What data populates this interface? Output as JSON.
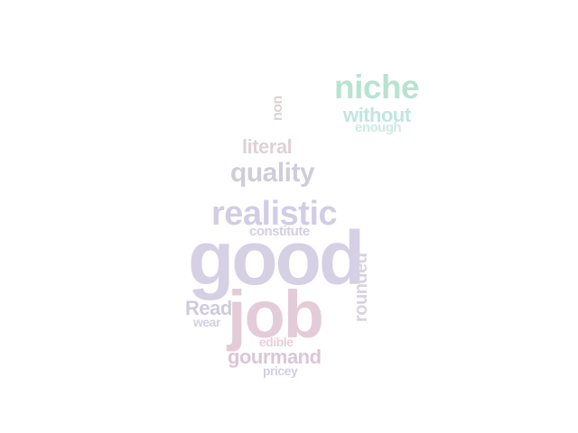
{
  "word_cloud": {
    "words": [
      {
        "key": "good",
        "text": "good",
        "color": "#d6d0e4"
      },
      {
        "key": "job",
        "text": "job",
        "color": "#e3ccd8"
      },
      {
        "key": "realistic",
        "text": "realistic",
        "color": "#d2cde5"
      },
      {
        "key": "quality",
        "text": "quality",
        "color": "#d0ccdc"
      },
      {
        "key": "literal",
        "text": "literal",
        "color": "#ded2d5"
      },
      {
        "key": "niche",
        "text": "niche",
        "color": "#b8e3d3"
      },
      {
        "key": "without",
        "text": "without",
        "color": "#c0e7dc"
      },
      {
        "key": "enough",
        "text": "enough",
        "color": "#cbece2"
      },
      {
        "key": "non",
        "text": "non",
        "color": "#ddd0d2"
      },
      {
        "key": "constitute",
        "text": "constitute",
        "color": "#d4cfe2"
      },
      {
        "key": "rounded",
        "text": "rounded",
        "color": "#d8d3e2"
      },
      {
        "key": "Read",
        "text": "Read",
        "color": "#cfcbdc"
      },
      {
        "key": "wear",
        "text": "wear",
        "color": "#d4cfe3"
      },
      {
        "key": "edible",
        "text": "edible",
        "color": "#ebcfd8"
      },
      {
        "key": "gourmand",
        "text": "gourmand",
        "color": "#dcc6d4"
      },
      {
        "key": "pricey",
        "text": "pricey",
        "color": "#d3cfe3"
      }
    ]
  }
}
